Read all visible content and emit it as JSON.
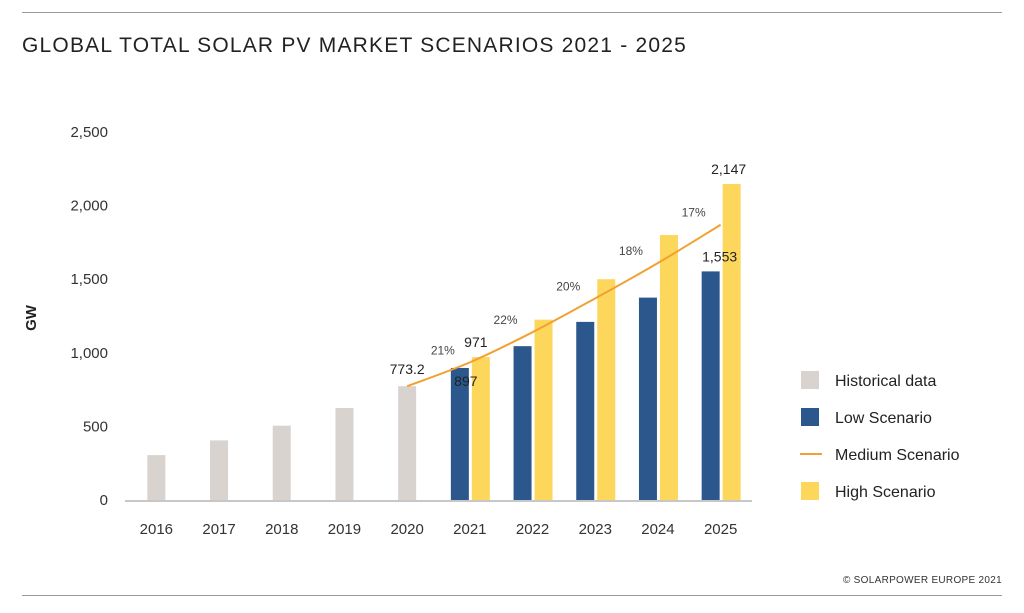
{
  "title": "GLOBAL TOTAL SOLAR PV MARKET SCENARIOS 2021 - 2025",
  "footer": "© SOLARPOWER EUROPE 2021",
  "colors": {
    "historical": "#d9d3d0",
    "low": "#2b578c",
    "medium": "#f0a131",
    "high": "#fdd75c",
    "axis": "#8f8f8f"
  },
  "chart_data": {
    "type": "bar",
    "title": "GLOBAL TOTAL SOLAR PV MARKET SCENARIOS 2021 - 2025",
    "xlabel": "",
    "ylabel": "GW",
    "ylim": [
      0,
      2500
    ],
    "yticks": [
      0,
      500,
      1000,
      1500,
      2000,
      2500
    ],
    "ytick_labels": [
      "0",
      "500",
      "1,000",
      "1,500",
      "2,000",
      "2,500"
    ],
    "grid": false,
    "legend_position": "right",
    "categories": [
      "2016",
      "2017",
      "2018",
      "2019",
      "2020",
      "2021",
      "2022",
      "2023",
      "2024",
      "2025"
    ],
    "series": [
      {
        "name": "Historical data",
        "type": "bar",
        "values": [
          305,
          405,
          505,
          625,
          773.2,
          null,
          null,
          null,
          null,
          null
        ]
      },
      {
        "name": "Low Scenario",
        "type": "bar",
        "values": [
          null,
          null,
          null,
          null,
          null,
          897,
          1045,
          1210,
          1375,
          1553
        ]
      },
      {
        "name": "Medium Scenario",
        "type": "line",
        "values": [
          null,
          null,
          null,
          null,
          773.2,
          935,
          1140,
          1370,
          1610,
          1870
        ]
      },
      {
        "name": "High Scenario",
        "type": "bar",
        "values": [
          null,
          null,
          null,
          null,
          null,
          971,
          1225,
          1500,
          1800,
          2147
        ]
      }
    ],
    "data_labels": [
      {
        "category": "2020",
        "text": "773.2"
      },
      {
        "category": "2021",
        "text": "971"
      },
      {
        "category": "2021",
        "text": "897"
      },
      {
        "category": "2025",
        "text": "2,147"
      },
      {
        "category": "2025",
        "text": "1,553"
      }
    ],
    "growth_labels": [
      {
        "category": "2021",
        "text": "21%"
      },
      {
        "category": "2022",
        "text": "22%"
      },
      {
        "category": "2023",
        "text": "20%"
      },
      {
        "category": "2024",
        "text": "18%"
      },
      {
        "category": "2025",
        "text": "17%"
      }
    ]
  }
}
